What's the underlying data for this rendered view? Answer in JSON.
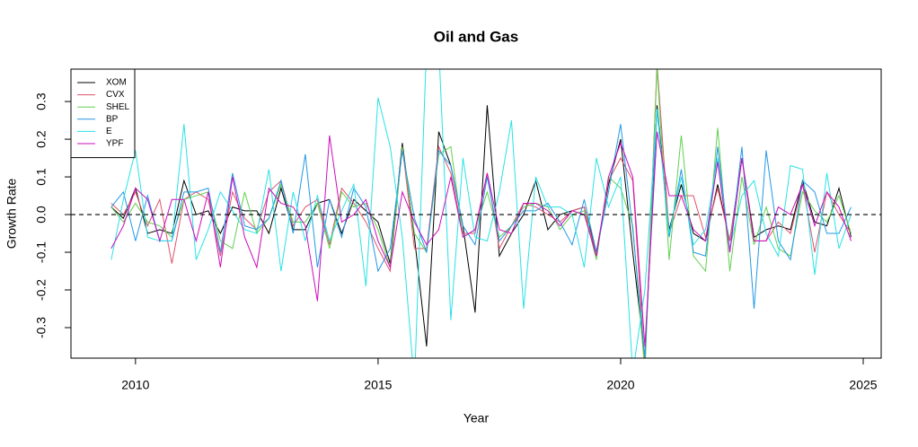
{
  "chart_data": {
    "type": "line",
    "title": "Oil and Gas",
    "xlabel": "Year",
    "ylabel": "Growth Rate",
    "x": [
      2009.5,
      2009.75,
      2010,
      2010.25,
      2010.5,
      2010.75,
      2011,
      2011.25,
      2011.5,
      2011.75,
      2012,
      2012.25,
      2012.5,
      2012.75,
      2013,
      2013.25,
      2013.5,
      2013.75,
      2014,
      2014.25,
      2014.5,
      2014.75,
      2015,
      2015.25,
      2015.5,
      2015.75,
      2016,
      2016.25,
      2016.5,
      2016.75,
      2017,
      2017.25,
      2017.5,
      2017.75,
      2018,
      2018.25,
      2018.5,
      2018.75,
      2019,
      2019.25,
      2019.5,
      2019.75,
      2020,
      2020.25,
      2020.5,
      2020.75,
      2021,
      2021.25,
      2021.5,
      2021.75,
      2022,
      2022.25,
      2022.5,
      2022.75,
      2023,
      2023.25,
      2023.5,
      2023.75,
      2024,
      2024.25,
      2024.5,
      2024.75
    ],
    "series": [
      {
        "name": "XOM",
        "color": "#000000",
        "values": [
          0.02,
          -0.01,
          0.07,
          -0.05,
          -0.04,
          -0.05,
          0.09,
          0.0,
          0.01,
          -0.05,
          0.02,
          0.01,
          0.01,
          -0.05,
          0.07,
          -0.04,
          -0.04,
          0.03,
          0.04,
          -0.05,
          0.04,
          0.01,
          -0.02,
          -0.13,
          0.19,
          -0.06,
          -0.35,
          0.22,
          0.13,
          -0.03,
          -0.26,
          0.29,
          -0.11,
          -0.05,
          0.0,
          0.09,
          -0.04,
          0.0,
          0.01,
          0.02,
          -0.1,
          0.08,
          0.2,
          -0.1,
          -0.38,
          0.29,
          -0.04,
          0.08,
          -0.05,
          -0.07,
          0.08,
          -0.07,
          0.15,
          -0.06,
          -0.04,
          -0.03,
          -0.04,
          0.09,
          -0.02,
          -0.03,
          0.07,
          -0.06
        ]
      },
      {
        "name": "CVX",
        "color": "#DF536B",
        "values": [
          0.03,
          0.0,
          0.06,
          -0.03,
          0.04,
          -0.13,
          0.04,
          0.06,
          0.04,
          -0.11,
          0.06,
          -0.01,
          -0.04,
          0.06,
          0.09,
          -0.03,
          0.02,
          0.04,
          -0.08,
          0.07,
          0.03,
          -0.02,
          -0.09,
          -0.15,
          0.18,
          -0.09,
          -0.09,
          0.18,
          0.11,
          -0.05,
          -0.05,
          0.11,
          -0.09,
          -0.03,
          0.03,
          0.02,
          0.0,
          -0.02,
          0.01,
          0.02,
          -0.11,
          0.09,
          0.15,
          0.09,
          -0.4,
          0.4,
          -0.05,
          0.05,
          0.05,
          -0.06,
          0.07,
          -0.07,
          0.15,
          -0.07,
          -0.07,
          -0.02,
          -0.05,
          0.08,
          -0.1,
          0.06,
          0.0,
          -0.05
        ]
      },
      {
        "name": "SHEL",
        "color": "#61D04F",
        "values": [
          0.02,
          -0.02,
          0.03,
          -0.02,
          -0.03,
          -0.06,
          0.04,
          0.05,
          0.06,
          -0.07,
          -0.09,
          0.06,
          -0.05,
          -0.01,
          0.08,
          -0.02,
          -0.02,
          0.03,
          -0.09,
          0.06,
          0.02,
          0.03,
          -0.04,
          -0.14,
          0.18,
          -0.05,
          -0.1,
          0.16,
          0.18,
          -0.06,
          -0.04,
          0.06,
          -0.06,
          -0.03,
          0.02,
          0.03,
          0.02,
          -0.04,
          0.0,
          0.01,
          -0.12,
          0.1,
          0.07,
          -0.03,
          -0.42,
          0.39,
          -0.12,
          0.21,
          -0.11,
          -0.15,
          0.23,
          -0.15,
          0.1,
          -0.08,
          0.02,
          -0.09,
          -0.11,
          0.06,
          0.01,
          -0.02,
          0.05,
          -0.05
        ]
      },
      {
        "name": "BP",
        "color": "#2297E6",
        "values": [
          0.02,
          0.06,
          -0.07,
          0.05,
          -0.07,
          -0.07,
          0.06,
          0.06,
          0.07,
          -0.1,
          0.11,
          -0.03,
          -0.04,
          -0.01,
          0.09,
          -0.05,
          0.16,
          -0.14,
          0.04,
          -0.06,
          0.07,
          0.02,
          -0.15,
          -0.09,
          0.17,
          -0.01,
          -0.1,
          0.17,
          0.13,
          -0.03,
          -0.08,
          0.1,
          -0.07,
          -0.03,
          0.01,
          0.01,
          0.03,
          -0.02,
          -0.08,
          0.04,
          -0.1,
          0.06,
          0.24,
          -0.04,
          -0.38,
          0.28,
          -0.06,
          0.12,
          -0.1,
          -0.11,
          0.18,
          -0.1,
          0.18,
          -0.25,
          0.17,
          -0.07,
          -0.12,
          0.09,
          0.06,
          -0.05,
          -0.05,
          0.02
        ]
      },
      {
        "name": "E",
        "color": "#28E2E5",
        "values": [
          -0.12,
          0.04,
          0.17,
          -0.06,
          -0.07,
          -0.07,
          0.24,
          -0.12,
          -0.04,
          0.06,
          0.01,
          -0.04,
          -0.05,
          0.12,
          -0.15,
          0.06,
          -0.07,
          0.05,
          -0.07,
          0.01,
          0.08,
          -0.19,
          0.31,
          0.18,
          -0.06,
          -0.45,
          0.45,
          0.45,
          -0.28,
          0.15,
          -0.06,
          -0.07,
          0.06,
          0.25,
          -0.25,
          0.1,
          0.02,
          0.02,
          0.0,
          -0.14,
          0.15,
          0.02,
          0.1,
          -0.42,
          -0.2,
          0.28,
          -0.05,
          0.1,
          -0.08,
          -0.04,
          0.15,
          -0.09,
          0.05,
          0.09,
          -0.05,
          -0.11,
          0.13,
          0.12,
          -0.16,
          0.11,
          -0.09,
          0.0
        ]
      },
      {
        "name": "YPF",
        "color": "#CD0BBC",
        "values": [
          -0.09,
          -0.03,
          0.07,
          0.04,
          -0.07,
          0.04,
          0.04,
          -0.07,
          0.06,
          -0.14,
          0.1,
          -0.06,
          -0.14,
          0.07,
          0.03,
          0.02,
          -0.03,
          -0.23,
          0.21,
          -0.02,
          0.0,
          0.04,
          -0.07,
          -0.14,
          0.06,
          -0.02,
          -0.08,
          -0.04,
          0.1,
          -0.06,
          -0.04,
          0.11,
          -0.04,
          -0.05,
          0.03,
          0.03,
          0.01,
          -0.03,
          0.01,
          0.0,
          -0.11,
          0.1,
          0.19,
          0.1,
          -0.35,
          0.22,
          0.05,
          0.05,
          -0.04,
          -0.07,
          0.14,
          -0.1,
          0.15,
          -0.07,
          -0.07,
          0.02,
          0.0,
          0.08,
          -0.03,
          0.06,
          0.02,
          -0.07
        ]
      }
    ],
    "xlim": [
      2008.67,
      2025.37
    ],
    "xticks": [
      2010,
      2015,
      2020,
      2025
    ],
    "ylim": [
      -0.381,
      0.386
    ],
    "yticks": [
      -0.3,
      -0.2,
      -0.1,
      {
        "value": 0,
        "label": "0.0"
      },
      0.1,
      0.2,
      0.3
    ],
    "reference_line": 0,
    "legend": "top-left"
  }
}
